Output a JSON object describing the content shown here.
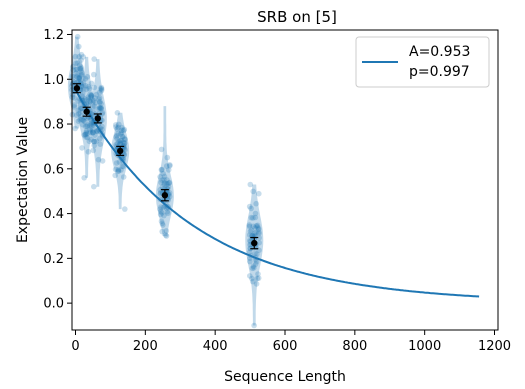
{
  "chart_data": {
    "type": "scatter",
    "title": "SRB on [5]",
    "xlabel": "Sequence Length",
    "ylabel": "Expectation Value",
    "xlim": [
      -10,
      1210
    ],
    "ylim": [
      -0.12,
      1.22
    ],
    "xticks": [
      0,
      200,
      400,
      600,
      800,
      1000,
      1200
    ],
    "yticks": [
      0.0,
      0.2,
      0.4,
      0.6,
      0.8,
      1.0,
      1.2
    ],
    "xtick_labels": [
      "0",
      "200",
      "400",
      "600",
      "800",
      "1000",
      "1200"
    ],
    "ytick_labels": [
      "0.0",
      "0.2",
      "0.4",
      "0.6",
      "0.8",
      "1.0",
      "1.2"
    ],
    "grid": false,
    "legend": {
      "position": "top-right",
      "entries": [
        "A=0.953",
        "p=0.997"
      ]
    },
    "fit": {
      "A": 0.953,
      "p": 0.997,
      "x_max": 1156,
      "color": "#1f77b4"
    },
    "means": [
      {
        "x": 4,
        "y": 0.96,
        "err": 0.02
      },
      {
        "x": 32,
        "y": 0.855,
        "err": 0.02
      },
      {
        "x": 64,
        "y": 0.825,
        "err": 0.02
      },
      {
        "x": 128,
        "y": 0.68,
        "err": 0.02
      },
      {
        "x": 256,
        "y": 0.482,
        "err": 0.025
      },
      {
        "x": 512,
        "y": 0.268,
        "err": 0.025
      }
    ],
    "distributions": [
      {
        "x": 4,
        "min": 0.78,
        "max": 1.19,
        "mode": 0.97,
        "spread": 0.09
      },
      {
        "x": 32,
        "min": 0.56,
        "max": 1.1,
        "mode": 0.86,
        "spread": 0.09
      },
      {
        "x": 64,
        "min": 0.52,
        "max": 1.09,
        "mode": 0.82,
        "spread": 0.1
      },
      {
        "x": 128,
        "min": 0.42,
        "max": 0.85,
        "mode": 0.68,
        "spread": 0.08
      },
      {
        "x": 256,
        "min": 0.3,
        "max": 0.88,
        "mode": 0.48,
        "spread": 0.09
      },
      {
        "x": 512,
        "min": -0.1,
        "max": 0.53,
        "mode": 0.28,
        "spread": 0.11
      }
    ],
    "colors": {
      "points": "#1f77b4",
      "means": "#000000"
    }
  }
}
